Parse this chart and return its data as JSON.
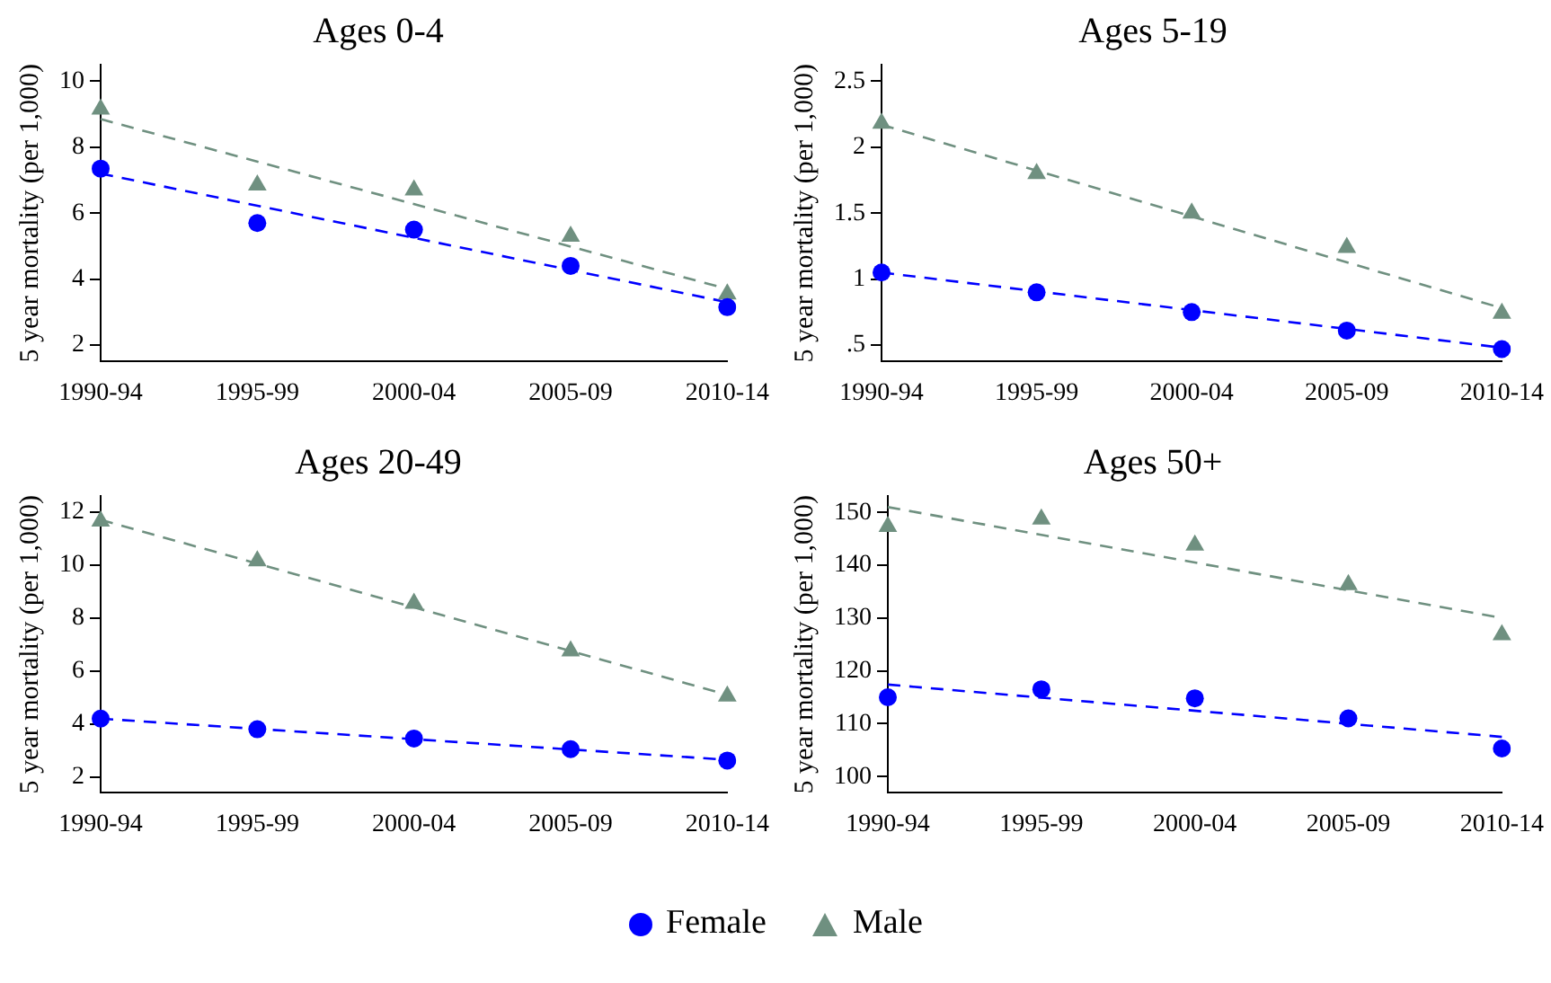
{
  "chart_data": [
    {
      "type": "scatter",
      "title": "Ages 0-4",
      "ylabel": "5 year mortality (per 1,000)",
      "categories": [
        "1990-94",
        "1995-99",
        "2000-04",
        "2005-09",
        "2010-14"
      ],
      "ylim": [
        1.5,
        10.5
      ],
      "yticks": [
        2,
        4,
        6,
        8,
        10
      ],
      "grid": false,
      "legend": "bottom",
      "series": [
        {
          "name": "Female",
          "color": "#0000ff",
          "marker": "circle",
          "values": [
            7.35,
            5.7,
            5.5,
            4.4,
            3.15
          ]
        },
        {
          "name": "Male",
          "color": "#6f9080",
          "marker": "triangle",
          "values": [
            9.15,
            6.85,
            6.7,
            5.3,
            3.55
          ]
        },
        {
          "type": "line",
          "color": "#0000ff",
          "line_style": "dashed",
          "marker": "none",
          "x": [
            "1990-94",
            "2010-14"
          ],
          "values": [
            7.2,
            3.3
          ]
        },
        {
          "type": "line",
          "color": "#6f9080",
          "line_style": "dashed",
          "marker": "none",
          "x": [
            "1990-94",
            "2010-14"
          ],
          "values": [
            8.85,
            3.7
          ]
        }
      ]
    },
    {
      "type": "scatter",
      "title": "Ages 5-19",
      "ylabel": "5 year mortality (per 1,000)",
      "categories": [
        "1990-94",
        "1995-99",
        "2000-04",
        "2005-09",
        "2010-14"
      ],
      "ylim": [
        0.375,
        2.625
      ],
      "yticks": [
        {
          "value": 0.5,
          "label": ".5"
        },
        1,
        1.5,
        2,
        2.5
      ],
      "grid": false,
      "series": [
        {
          "color": "#0000ff",
          "marker": "circle",
          "values": [
            1.05,
            0.9,
            0.75,
            0.61,
            0.47
          ]
        },
        {
          "color": "#6f9080",
          "marker": "triangle",
          "values": [
            2.18,
            1.8,
            1.5,
            1.24,
            0.74
          ]
        },
        {
          "type": "line",
          "color": "#0000ff",
          "line_style": "dashed",
          "marker": "none",
          "x": [
            "1990-94",
            "2010-14"
          ],
          "values": [
            1.05,
            0.48
          ]
        },
        {
          "type": "line",
          "color": "#6f9080",
          "line_style": "dashed",
          "marker": "none",
          "x": [
            "1990-94",
            "2010-14"
          ],
          "values": [
            2.17,
            0.78
          ]
        }
      ]
    },
    {
      "type": "scatter",
      "title": "Ages 20-49",
      "ylabel": "5 year mortality (per 1,000)",
      "categories": [
        "1990-94",
        "1995-99",
        "2000-04",
        "2005-09",
        "2010-14"
      ],
      "ylim": [
        1.4,
        12.6
      ],
      "yticks": [
        2,
        4,
        6,
        8,
        10,
        12
      ],
      "grid": false,
      "series": [
        {
          "color": "#0000ff",
          "marker": "circle",
          "values": [
            4.2,
            3.8,
            3.45,
            3.05,
            2.62
          ]
        },
        {
          "color": "#6f9080",
          "marker": "triangle",
          "values": [
            11.65,
            10.15,
            8.55,
            6.75,
            5.05
          ]
        },
        {
          "type": "line",
          "color": "#0000ff",
          "line_style": "dashed",
          "marker": "none",
          "x": [
            "1990-94",
            "2010-14"
          ],
          "values": [
            4.2,
            2.65
          ]
        },
        {
          "type": "line",
          "color": "#6f9080",
          "line_style": "dashed",
          "marker": "none",
          "x": [
            "1990-94",
            "2010-14"
          ],
          "values": [
            11.7,
            5.1
          ]
        }
      ]
    },
    {
      "type": "scatter",
      "title": "Ages 50+",
      "ylabel": "5 year mortality (per 1,000)",
      "categories": [
        "1990-94",
        "1995-99",
        "2000-04",
        "2005-09",
        "2010-14"
      ],
      "ylim": [
        96.9,
        153.1
      ],
      "yticks": [
        100,
        110,
        120,
        130,
        140,
        150
      ],
      "grid": false,
      "series": [
        {
          "color": "#0000ff",
          "marker": "circle",
          "values": [
            115,
            116.5,
            114.8,
            111,
            105.3
          ]
        },
        {
          "color": "#6f9080",
          "marker": "triangle",
          "values": [
            147.3,
            148.7,
            143.8,
            136.3,
            126.8
          ]
        },
        {
          "type": "line",
          "color": "#0000ff",
          "line_style": "dashed",
          "marker": "none",
          "x": [
            "1990-94",
            "2010-14"
          ],
          "values": [
            117.4,
            107.5
          ]
        },
        {
          "type": "line",
          "color": "#6f9080",
          "line_style": "dashed",
          "marker": "none",
          "x": [
            "1990-94",
            "2010-14"
          ],
          "values": [
            151,
            130
          ]
        }
      ]
    }
  ]
}
